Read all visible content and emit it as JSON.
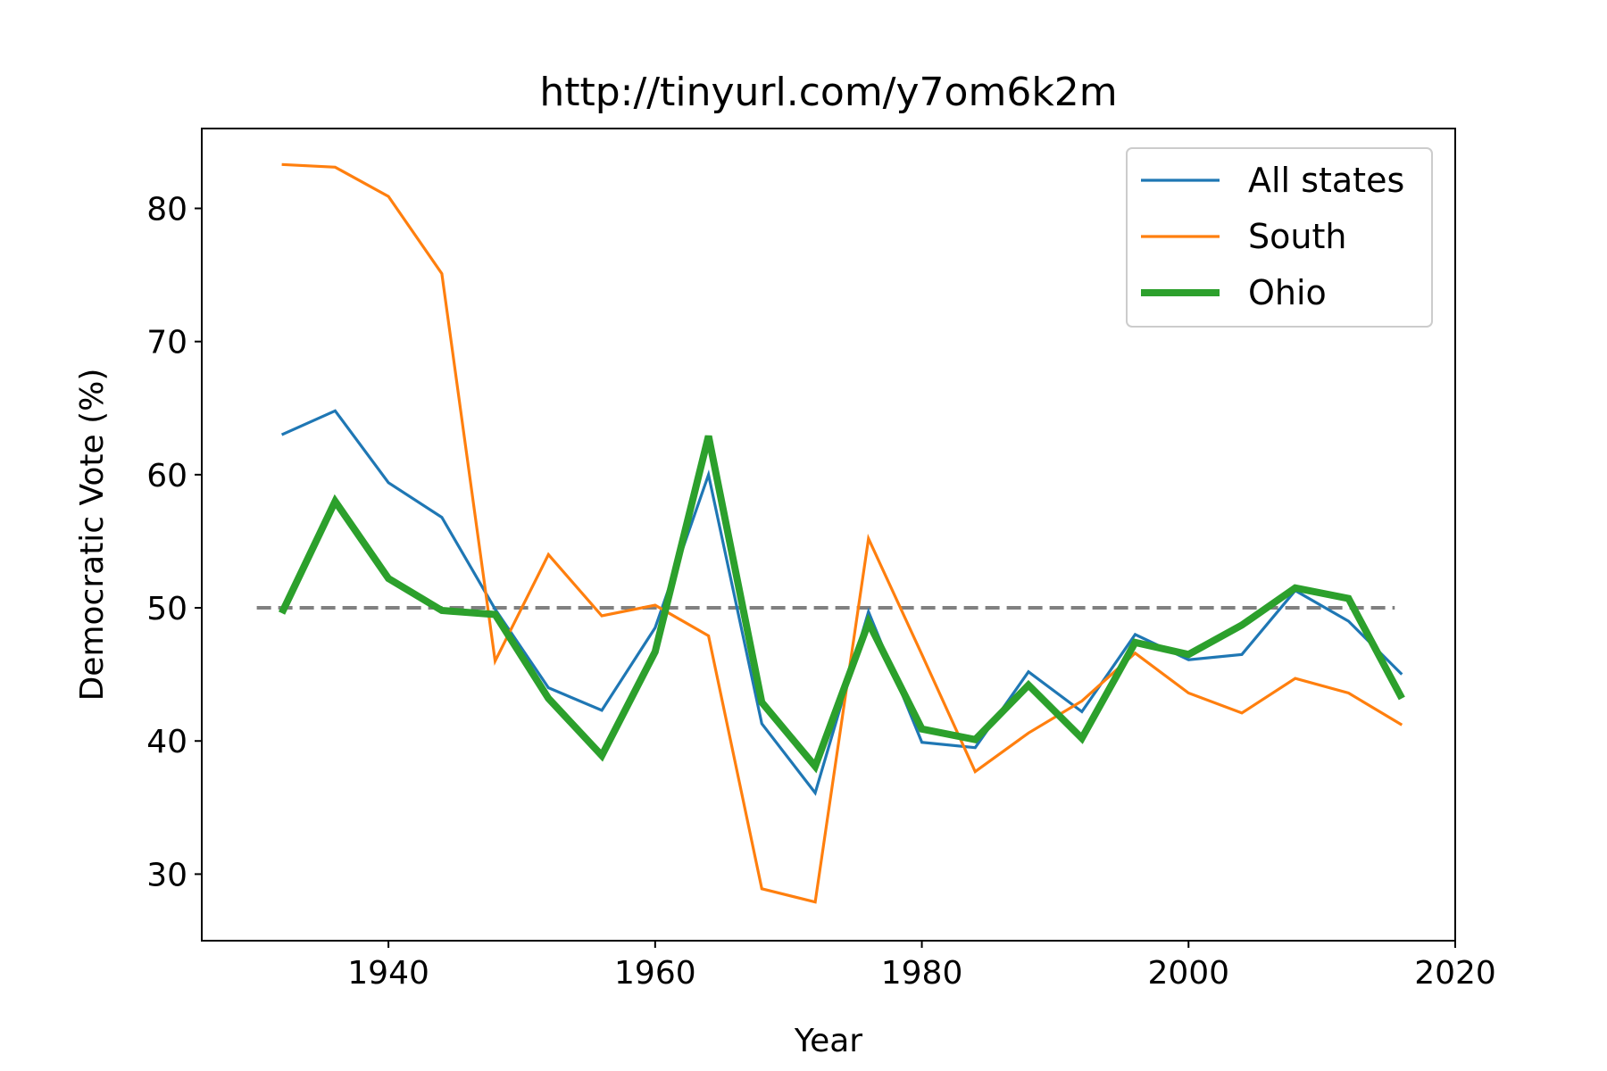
{
  "chart_data": {
    "type": "line",
    "title": "http://tinyurl.com/y7om6k2m",
    "xlabel": "Year",
    "ylabel": "Democratic Vote (%)",
    "xlim": [
      1926,
      2020
    ],
    "ylim": [
      25,
      86
    ],
    "xticks": [
      1940,
      1960,
      1980,
      2000,
      2020
    ],
    "yticks": [
      30,
      40,
      50,
      60,
      70,
      80
    ],
    "x": [
      1932,
      1936,
      1940,
      1944,
      1948,
      1952,
      1956,
      1960,
      1964,
      1968,
      1972,
      1976,
      1980,
      1984,
      1988,
      1992,
      1996,
      2000,
      2004,
      2008,
      2012,
      2016
    ],
    "series": [
      {
        "name": "All states",
        "color": "#1f77b4",
        "width": "thin",
        "values": [
          63.0,
          64.8,
          59.4,
          56.8,
          49.9,
          44.0,
          42.3,
          48.5,
          60.0,
          41.3,
          36.1,
          49.7,
          39.9,
          39.5,
          45.2,
          42.2,
          48.0,
          46.1,
          46.5,
          51.3,
          49.0,
          45.0
        ]
      },
      {
        "name": "South",
        "color": "#ff7f0e",
        "width": "thin",
        "values": [
          83.3,
          83.1,
          80.9,
          75.1,
          46.0,
          54.0,
          49.4,
          50.2,
          47.9,
          28.9,
          27.9,
          55.2,
          46.5,
          37.7,
          40.6,
          43.0,
          46.6,
          43.6,
          42.1,
          44.7,
          43.6,
          41.2
        ]
      },
      {
        "name": "Ohio",
        "color": "#2ca02c",
        "width": "thick",
        "values": [
          49.6,
          58.0,
          52.2,
          49.8,
          49.5,
          43.2,
          38.9,
          46.7,
          62.9,
          42.9,
          38.1,
          48.9,
          40.9,
          40.1,
          44.2,
          40.2,
          47.4,
          46.5,
          48.7,
          51.5,
          50.7,
          43.2
        ]
      }
    ],
    "reference_line": {
      "y": 50,
      "color": "#808080",
      "style": "dashed"
    },
    "legend": {
      "position": "top-right"
    },
    "grid": false
  }
}
